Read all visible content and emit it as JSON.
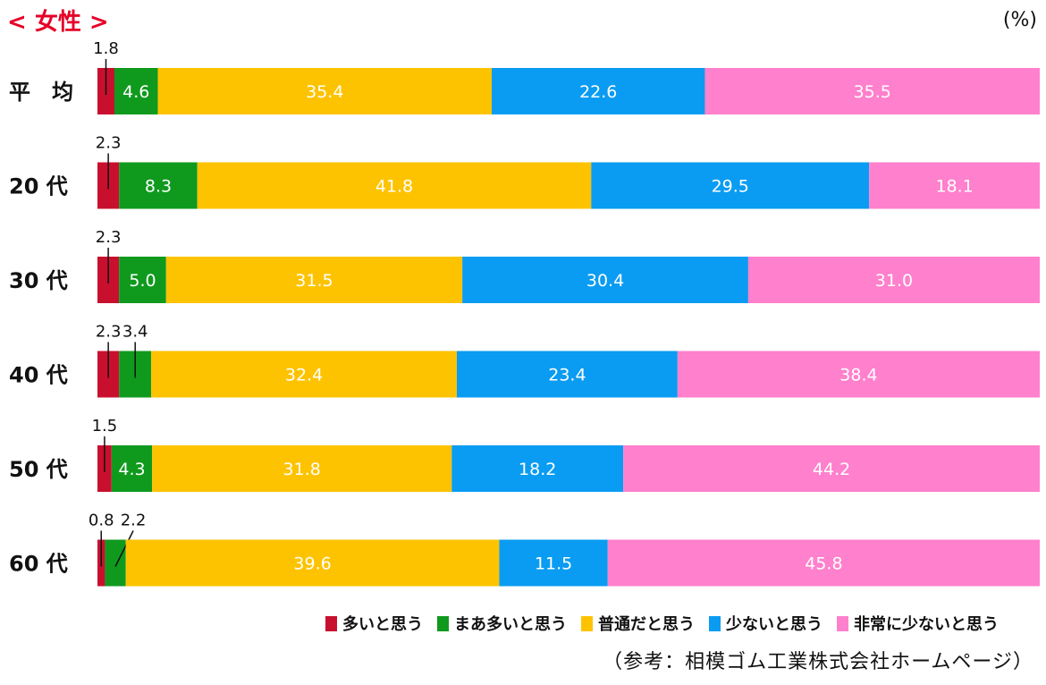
{
  "chart_data": {
    "type": "bar",
    "orientation": "horizontal",
    "stacked": true,
    "title": "< 女性 >",
    "unit": "(%)",
    "source": "（参考：相模ゴム工業株式会社ホームページ）",
    "categories": [
      "平　均",
      "20 代",
      "30 代",
      "40 代",
      "50 代",
      "60 代"
    ],
    "series": [
      {
        "name": "多いと思う",
        "color": "#c8102e",
        "values": [
          1.8,
          2.3,
          2.3,
          2.3,
          1.5,
          0.8
        ]
      },
      {
        "name": "まあ多いと思う",
        "color": "#0f9a1e",
        "values": [
          4.6,
          8.3,
          5.0,
          3.4,
          4.3,
          2.2
        ]
      },
      {
        "name": "普通だと思う",
        "color": "#fdc300",
        "values": [
          35.4,
          41.8,
          31.5,
          32.4,
          31.8,
          39.6
        ]
      },
      {
        "name": "少ないと思う",
        "color": "#0a9cf2",
        "values": [
          22.6,
          29.5,
          30.4,
          23.4,
          18.2,
          11.5
        ]
      },
      {
        "name": "非常に少ないと思う",
        "color": "#ff80cc",
        "values": [
          35.5,
          18.1,
          31.0,
          38.4,
          44.2,
          45.8
        ]
      }
    ],
    "xlim": [
      0,
      100
    ],
    "grid": false,
    "legend_position": "bottom-right"
  }
}
